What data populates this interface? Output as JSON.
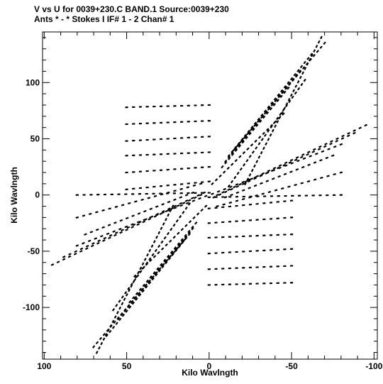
{
  "header": {
    "line1": "V vs U for 0039+230.C BAND.1   Source:0039+230",
    "line2": "Ants * - *    Stokes I  IF# 1 - 2  Chan# 1"
  },
  "chart_data": {
    "type": "scatter",
    "xlabel": "Kilo Wavlngth",
    "ylabel": "Kilo Wavlngth",
    "xlim": [
      101,
      -102
    ],
    "ylim": [
      -146,
      145
    ],
    "x_reversed": true,
    "x_ticks": [
      100,
      50,
      0,
      -50,
      -100
    ],
    "x_tick_labels": [
      "100",
      "50",
      "0",
      "-50",
      "-100"
    ],
    "x_minor_step": 10,
    "y_ticks": [
      -100,
      -50,
      0,
      50,
      100
    ],
    "y_tick_labels": [
      "-100",
      "-50",
      "0",
      "50",
      "100"
    ],
    "y_minor_step": 10,
    "grid": false,
    "legend": "none",
    "series": [
      {
        "tracks": [
          {
            "u": [
              95,
              5
            ],
            "v": [
              -62,
              0
            ]
          },
          {
            "u": [
              88,
              3
            ],
            "v": [
              -55,
              2
            ]
          },
          {
            "u": [
              80,
              2
            ],
            "v": [
              -45,
              -1
            ]
          },
          {
            "u": [
              -5,
              -95
            ],
            "v": [
              0,
              62
            ]
          },
          {
            "u": [
              -3,
              -88
            ],
            "v": [
              -2,
              55
            ]
          },
          {
            "u": [
              -2,
              -80
            ],
            "v": [
              1,
              45
            ]
          },
          {
            "u": [
              70,
              15
            ],
            "v": [
              -135,
              -40
            ]
          },
          {
            "u": [
              62,
              12
            ],
            "v": [
              -125,
              -35
            ]
          },
          {
            "u": [
              55,
              10
            ],
            "v": [
              -110,
              -30
            ]
          },
          {
            "u": [
              48,
              8
            ],
            "v": [
              -95,
              -25
            ]
          },
          {
            "u": [
              -15,
              -70
            ],
            "v": [
              40,
              135
            ]
          },
          {
            "u": [
              -12,
              -62
            ],
            "v": [
              35,
              125
            ]
          },
          {
            "u": [
              -10,
              -55
            ],
            "v": [
              30,
              110
            ]
          },
          {
            "u": [
              -8,
              -48
            ],
            "v": [
              25,
              95
            ]
          },
          {
            "u": [
              -2,
              -45
            ],
            "v": [
              10,
              72
            ]
          },
          {
            "u": [
              2,
              45
            ],
            "v": [
              -10,
              -72
            ]
          },
          {
            "u": [
              -12,
              -58
            ],
            "v": [
              8,
              102
            ]
          },
          {
            "u": [
              12,
              58
            ],
            "v": [
              -8,
              -102
            ]
          },
          {
            "u": [
              -22,
              -68
            ],
            "v": [
              10,
              140
            ]
          },
          {
            "u": [
              22,
              68
            ],
            "v": [
              -10,
              -140
            ]
          },
          {
            "u": [
              50,
              0
            ],
            "v": [
              78,
              80
            ]
          },
          {
            "u": [
              50,
              0
            ],
            "v": [
              63,
              66
            ]
          },
          {
            "u": [
              50,
              0
            ],
            "v": [
              48,
              52
            ]
          },
          {
            "u": [
              50,
              0
            ],
            "v": [
              35,
              38
            ]
          },
          {
            "u": [
              50,
              0
            ],
            "v": [
              20,
              25
            ]
          },
          {
            "u": [
              50,
              0
            ],
            "v": [
              5,
              12
            ]
          },
          {
            "u": [
              0,
              -50
            ],
            "v": [
              -80,
              -78
            ]
          },
          {
            "u": [
              0,
              -50
            ],
            "v": [
              -66,
              -63
            ]
          },
          {
            "u": [
              0,
              -50
            ],
            "v": [
              -52,
              -48
            ]
          },
          {
            "u": [
              0,
              -50
            ],
            "v": [
              -38,
              -35
            ]
          },
          {
            "u": [
              0,
              -50
            ],
            "v": [
              -25,
              -20
            ]
          },
          {
            "u": [
              0,
              -50
            ],
            "v": [
              -12,
              -5
            ]
          },
          {
            "u": [
              -10,
              -75
            ],
            "v": [
              -2,
              35
            ]
          },
          {
            "u": [
              -5,
              -80
            ],
            "v": [
              -10,
              20
            ]
          },
          {
            "u": [
              10,
              75
            ],
            "v": [
              2,
              -35
            ]
          },
          {
            "u": [
              5,
              80
            ],
            "v": [
              10,
              -20
            ]
          },
          {
            "u": [
              80,
              0
            ],
            "v": [
              0,
              2
            ]
          },
          {
            "u": [
              0,
              -80
            ],
            "v": [
              -2,
              0
            ]
          }
        ]
      }
    ]
  }
}
